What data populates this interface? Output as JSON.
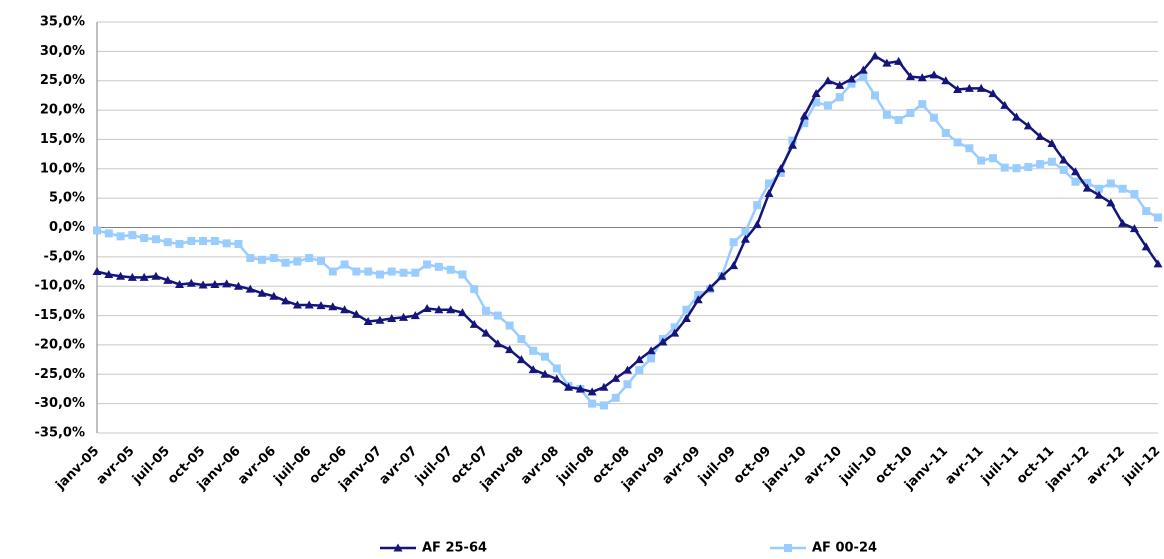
{
  "chart_data": {
    "type": "line",
    "categories": [
      "janv-05",
      null,
      null,
      "avr-05",
      null,
      null,
      "juil-05",
      null,
      null,
      "oct-05",
      null,
      null,
      "janv-06",
      null,
      null,
      "avr-06",
      null,
      null,
      "juil-06",
      null,
      null,
      "oct-06",
      null,
      null,
      "janv-07",
      null,
      null,
      "avr-07",
      null,
      null,
      "juil-07",
      null,
      null,
      "oct-07",
      null,
      null,
      "janv-08",
      null,
      null,
      "avr-08",
      null,
      null,
      "juil-08",
      null,
      null,
      "oct-08",
      null,
      null,
      "janv-09",
      null,
      null,
      "avr-09",
      null,
      null,
      "juil-09",
      null,
      null,
      "oct-09",
      null,
      null,
      "janv-10",
      null,
      null,
      "avr-10",
      null,
      null,
      "juil-10",
      null,
      null,
      "oct-10",
      null,
      null,
      "janv-11",
      null,
      null,
      "avr-11",
      null,
      null,
      "juil-11",
      null,
      null,
      "oct-11",
      null,
      null,
      "janv-12",
      null,
      null,
      "avr-12",
      null,
      null,
      "juil-12"
    ],
    "series": [
      {
        "name": "AF 25-64",
        "color": "#14147a",
        "marker": "triangle",
        "values": [
          -7.5,
          -8,
          -8.3,
          -8.5,
          -8.5,
          -8.3,
          -9,
          -9.7,
          -9.5,
          -9.8,
          -9.7,
          -9.6,
          -10,
          -10.5,
          -11.2,
          -11.7,
          -12.5,
          -13.2,
          -13.2,
          -13.3,
          -13.5,
          -14,
          -14.8,
          -16,
          -15.8,
          -15.5,
          -15.3,
          -15,
          -13.8,
          -14,
          -14,
          -14.5,
          -16.5,
          -18,
          -19.8,
          -20.8,
          -22.5,
          -24.2,
          -25,
          -25.8,
          -27.2,
          -27.5,
          -28,
          -27.2,
          -25.7,
          -24.3,
          -22.5,
          -21,
          -19.5,
          -18,
          -15.5,
          -12.3,
          -10.3,
          -8.3,
          -6.5,
          -2,
          0.5,
          5.8,
          10,
          14,
          19,
          22.8,
          25,
          24.2,
          25.3,
          26.8,
          29.2,
          28,
          28.3,
          25.7,
          25.5,
          26,
          25,
          23.5,
          23.7,
          23.7,
          22.8,
          20.8,
          18.8,
          17.3,
          15.5,
          14.3,
          11.5,
          9.5,
          6.7,
          5.5,
          4.2,
          0.7,
          -0.2,
          -3.3,
          -6.2
        ]
      },
      {
        "name": "AF 00-24",
        "color": "#99ccff",
        "marker": "square",
        "values": [
          -0.5,
          -1,
          -1.5,
          -1.3,
          -1.8,
          -2,
          -2.5,
          -2.8,
          -2.3,
          -2.3,
          -2.3,
          -2.7,
          -2.8,
          -5.2,
          -5.5,
          -5.2,
          -6,
          -5.8,
          -5.2,
          -5.7,
          -7.5,
          -6.3,
          -7.5,
          -7.5,
          -8,
          -7.5,
          -7.7,
          -7.7,
          -6.3,
          -6.7,
          -7.2,
          -8,
          -10.5,
          -14.2,
          -15,
          -16.7,
          -19,
          -21,
          -22,
          -24,
          -27,
          -27.5,
          -30,
          -30.3,
          -29,
          -26.7,
          -24.3,
          -22.3,
          -19,
          -17,
          -14,
          -11.5,
          -10.5,
          -8.3,
          -2.5,
          -0.7,
          3.8,
          7.5,
          9.3,
          14.8,
          17.8,
          21.3,
          20.8,
          22.2,
          24.5,
          25.6,
          22.5,
          19.2,
          18.3,
          19.5,
          21,
          18.7,
          16.1,
          14.5,
          13.5,
          11.4,
          11.8,
          10.2,
          10.1,
          10.3,
          10.8,
          11.2,
          9.8,
          7.8,
          7.6,
          6.6,
          7.5,
          6.6,
          5.7,
          2.8,
          1.7
        ]
      }
    ],
    "ylim": [
      -35,
      35
    ],
    "yticks": [
      {
        "value": -35,
        "label": "-35,0%"
      },
      {
        "value": -30,
        "label": "-30,0%"
      },
      {
        "value": -25,
        "label": "-25,0%"
      },
      {
        "value": -20,
        "label": "-20,0%"
      },
      {
        "value": -15,
        "label": "-15,0%"
      },
      {
        "value": -10,
        "label": "-10,0%"
      },
      {
        "value": -5,
        "label": "-5,0%"
      },
      {
        "value": 0,
        "label": "0,0%"
      },
      {
        "value": 5,
        "label": "5,0%"
      },
      {
        "value": 10,
        "label": "10,0%"
      },
      {
        "value": 15,
        "label": "15,0%"
      },
      {
        "value": 20,
        "label": "20,0%"
      },
      {
        "value": 25,
        "label": "25,0%"
      },
      {
        "value": 30,
        "label": "30,0%"
      },
      {
        "value": 35,
        "label": "35,0%"
      }
    ],
    "grid": true
  }
}
